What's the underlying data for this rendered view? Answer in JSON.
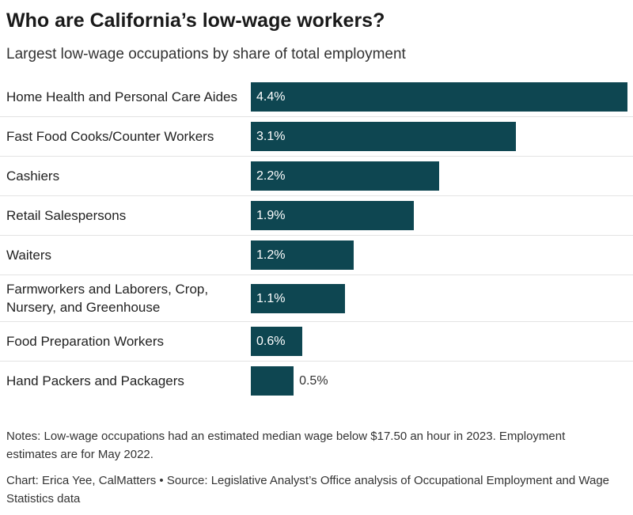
{
  "chart_data": {
    "type": "hbar",
    "title": "Who are California’s low-wage workers?",
    "subtitle": "Largest low-wage occupations by share of total employment",
    "categories": [
      "Home Health and Personal Care Aides",
      "Fast Food Cooks/Counter Workers",
      "Cashiers",
      "Retail Salespersons",
      "Waiters",
      "Farmworkers and Laborers, Crop, Nursery, and Greenhouse",
      "Food Preparation Workers",
      "Hand Packers and Packagers"
    ],
    "values": [
      4.4,
      3.1,
      2.2,
      1.9,
      1.2,
      1.1,
      0.6,
      0.5
    ],
    "value_labels": [
      "4.4%",
      "3.1%",
      "2.2%",
      "1.9%",
      "1.2%",
      "1.1%",
      "0.6%",
      "0.5%"
    ],
    "color": "#0e4651",
    "notes": "Notes: Low-wage occupations had an estimated median wage below $17.50 an hour in 2023. Employment estimates are for May 2022.",
    "credits": "Chart: Erica Yee, CalMatters • Source: Legislative Analyst’s Office analysis of Occupational Employment and Wage Statistics data"
  }
}
